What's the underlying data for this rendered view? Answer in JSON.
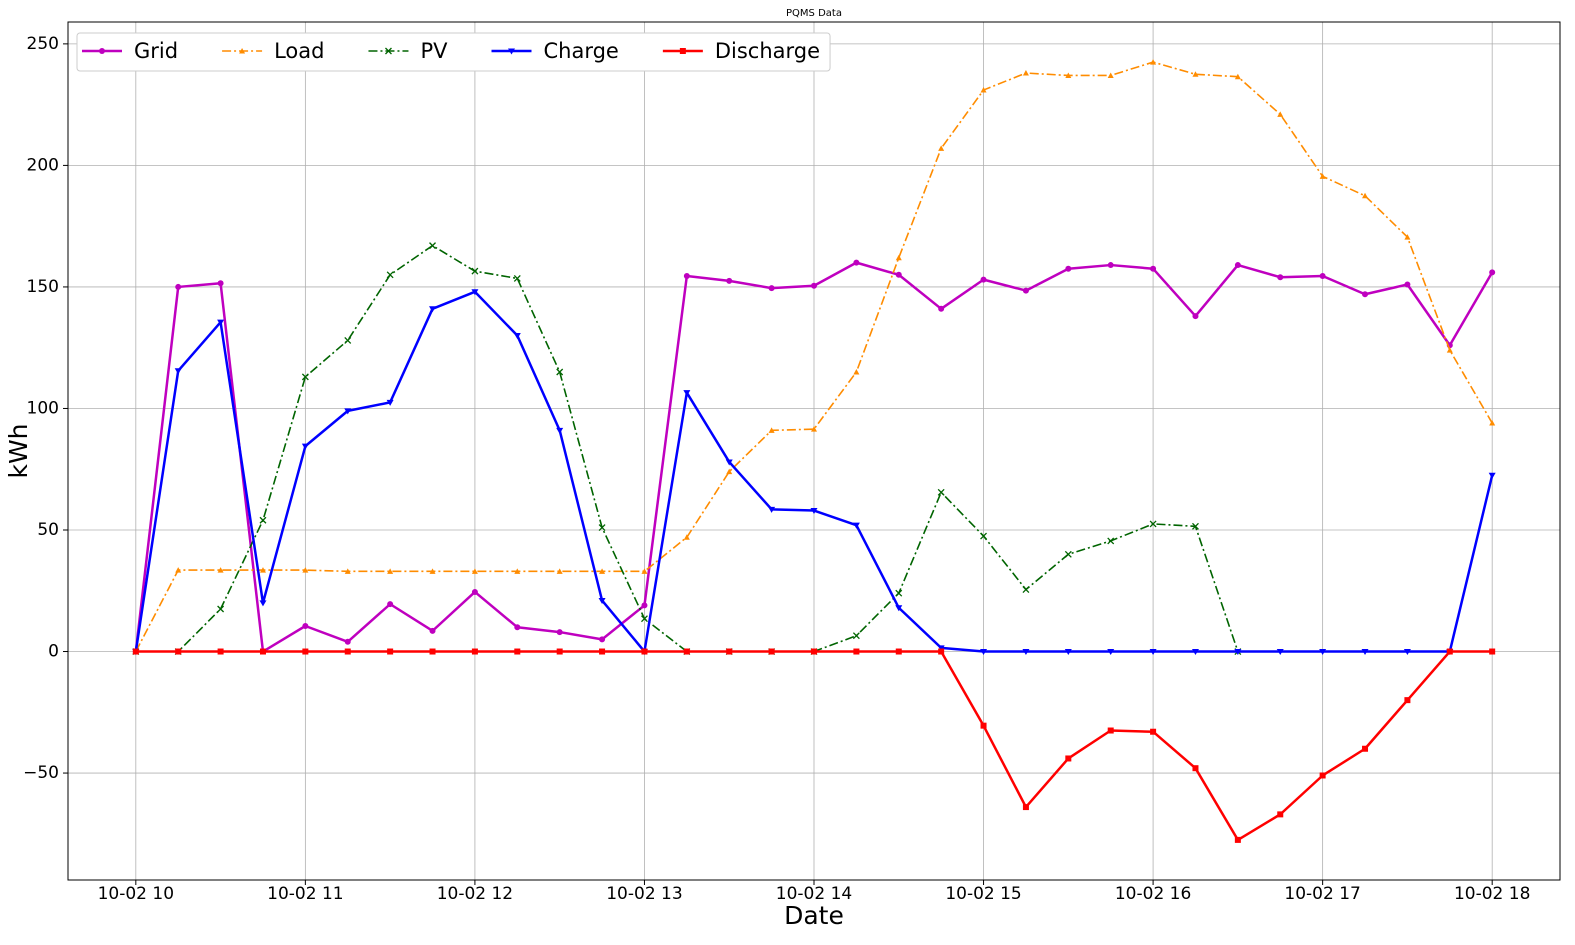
{
  "chart_data": {
    "type": "line",
    "title": "PQMS Data",
    "x_label": "Date",
    "y_label": "kWh",
    "x": [
      10,
      10.25,
      10.5,
      10.75,
      11,
      11.25,
      11.5,
      11.75,
      12,
      12.25,
      12.5,
      12.75,
      13,
      13.25,
      13.5,
      13.75,
      14,
      14.25,
      14.5,
      14.75,
      15,
      15.25,
      15.5,
      15.75,
      16,
      16.25,
      16.5,
      16.75,
      17,
      17.25,
      17.5,
      17.75,
      18
    ],
    "xlim": [
      9.6,
      18.4
    ],
    "xticks": [
      {
        "value": 10,
        "label": "10-02 10"
      },
      {
        "value": 11,
        "label": "10-02 11"
      },
      {
        "value": 12,
        "label": "10-02 12"
      },
      {
        "value": 13,
        "label": "10-02 13"
      },
      {
        "value": 14,
        "label": "10-02 14"
      },
      {
        "value": 15,
        "label": "10-02 15"
      },
      {
        "value": 16,
        "label": "10-02 16"
      },
      {
        "value": 17,
        "label": "10-02 17"
      },
      {
        "value": 18,
        "label": "10-02 18"
      }
    ],
    "ylim": [
      -94,
      259
    ],
    "yticks": [
      {
        "value": -50,
        "label": "−50"
      },
      0,
      50,
      100,
      150,
      200,
      250
    ],
    "grid": true,
    "legend": "upper left",
    "series": [
      {
        "name": "Grid",
        "color": "#bf00bf",
        "dash": "solid",
        "marker": "circle",
        "values": [
          0,
          150,
          151.5,
          0,
          10.5,
          4,
          19.5,
          8.5,
          24.5,
          10,
          8,
          5,
          19,
          154.5,
          152.5,
          149.5,
          150.5,
          160,
          155,
          141,
          153,
          148.5,
          157.5,
          159,
          157.5,
          138,
          159,
          154,
          154.5,
          147,
          151,
          126,
          156
        ]
      },
      {
        "name": "Load",
        "color": "#ff8c00",
        "dash": "dashdot",
        "marker": "triangle",
        "values": [
          0,
          33.5,
          33.5,
          33.5,
          33.5,
          33,
          33,
          33,
          33,
          33,
          33,
          33,
          33,
          47,
          74,
          91,
          91.5,
          115,
          162,
          207,
          231,
          238,
          237,
          237,
          242.5,
          237.5,
          236.5,
          221,
          195.5,
          187.5,
          170.5,
          124,
          94
        ]
      },
      {
        "name": "PV",
        "color": "#006400",
        "dash": "dashdot",
        "marker": "x",
        "values": [
          0,
          0,
          17.5,
          54,
          113,
          128,
          155,
          167,
          156.5,
          153.5,
          115,
          51,
          13.5,
          0,
          0,
          0,
          0,
          6.5,
          24,
          65.5,
          47.5,
          25.5,
          40,
          45.5,
          52.5,
          51.5,
          0,
          null,
          null,
          null,
          null,
          null,
          null
        ]
      },
      {
        "name": "Charge",
        "color": "#0000ff",
        "dash": "solid",
        "marker": "tri-down",
        "values": [
          0,
          115.5,
          135.5,
          20,
          84.5,
          99,
          102.5,
          141,
          148,
          130,
          91,
          21,
          0,
          106.5,
          78,
          58.5,
          58,
          52,
          18,
          1.5,
          0,
          0,
          0,
          0,
          0,
          0,
          0,
          0,
          0,
          0,
          0,
          0,
          72.5
        ]
      },
      {
        "name": "Discharge",
        "color": "#ff0000",
        "dash": "solid",
        "marker": "square",
        "values": [
          0,
          0,
          0,
          0,
          0,
          0,
          0,
          0,
          0,
          0,
          0,
          0,
          0,
          0,
          0,
          0,
          0,
          0,
          0,
          0,
          -30.5,
          -64,
          -44,
          -32.5,
          -33,
          -48,
          -77.5,
          -67,
          -51,
          -40,
          -20,
          0,
          0
        ]
      }
    ]
  }
}
